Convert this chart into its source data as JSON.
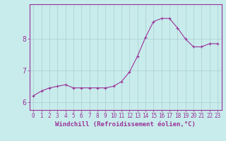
{
  "hours": [
    0,
    1,
    2,
    3,
    4,
    5,
    6,
    7,
    8,
    9,
    10,
    11,
    12,
    13,
    14,
    15,
    16,
    17,
    18,
    19,
    20,
    21,
    22,
    23
  ],
  "windchill": [
    6.2,
    6.35,
    6.45,
    6.5,
    6.55,
    6.45,
    6.45,
    6.45,
    6.45,
    6.45,
    6.5,
    6.65,
    6.95,
    7.45,
    8.05,
    8.55,
    8.65,
    8.65,
    8.35,
    8.0,
    7.75,
    7.75,
    7.85,
    7.85
  ],
  "line_color": "#993399",
  "marker": "+",
  "background_color": "#c8ecec",
  "grid_color": "#aacccc",
  "xlabel": "Windchill (Refroidissement éolien,°C)",
  "ylabel": "",
  "ylim": [
    5.75,
    9.1
  ],
  "xlim": [
    -0.5,
    23.5
  ],
  "yticks": [
    6,
    7,
    8
  ],
  "xticks": [
    0,
    1,
    2,
    3,
    4,
    5,
    6,
    7,
    8,
    9,
    10,
    11,
    12,
    13,
    14,
    15,
    16,
    17,
    18,
    19,
    20,
    21,
    22,
    23
  ],
  "xlabel_color": "#993399",
  "tick_color": "#993399",
  "marker_size": 3,
  "line_width": 0.8,
  "spine_color": "#993399",
  "tick_fontsize": 5.5,
  "xlabel_fontsize": 6.5
}
